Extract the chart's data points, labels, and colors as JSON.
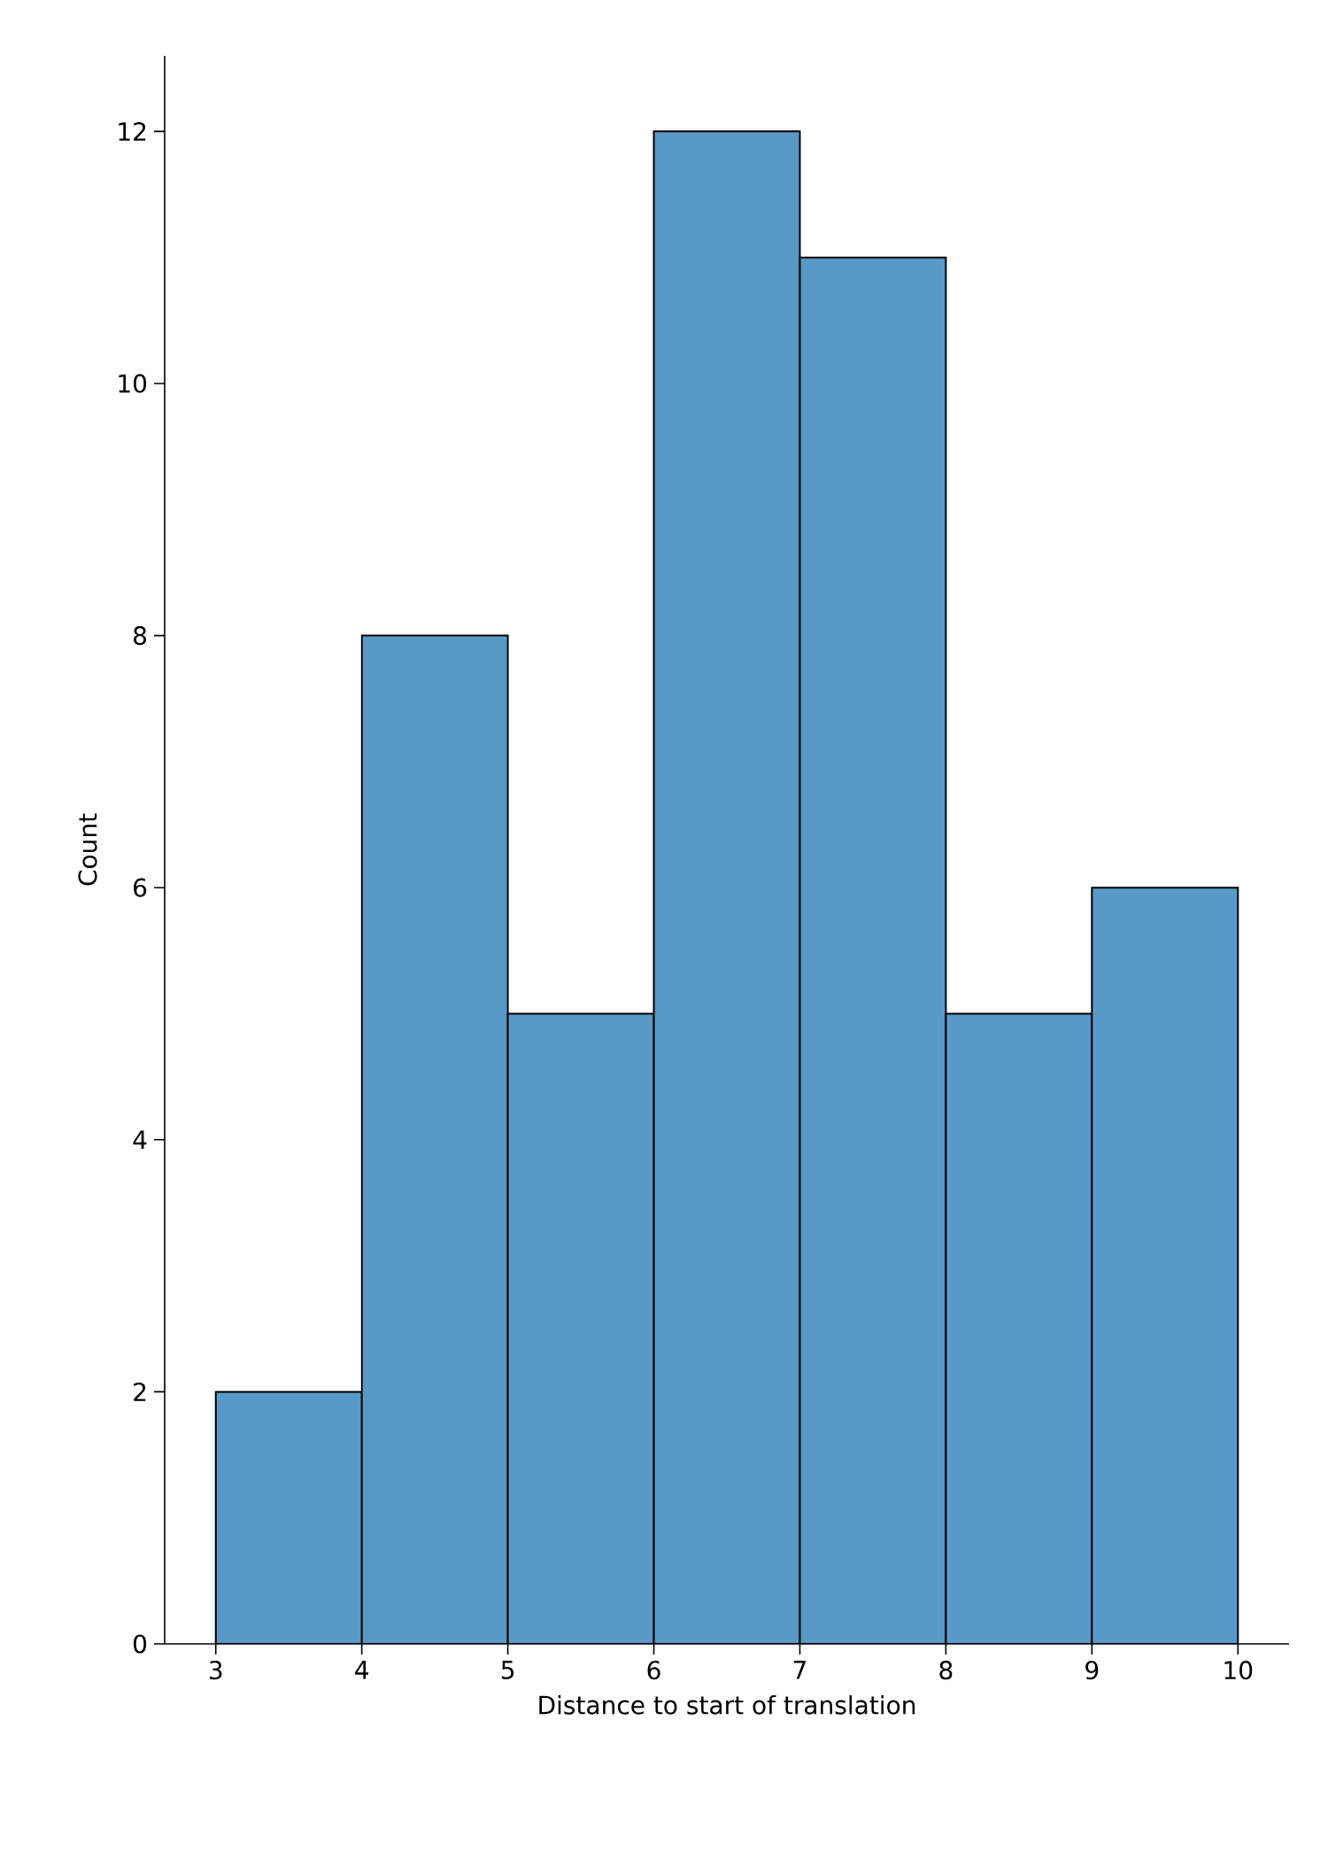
{
  "chart_data": {
    "type": "histogram",
    "xlabel": "Distance to start of translation",
    "ylabel": "Count",
    "bins": [
      3,
      4,
      5,
      6,
      7,
      8,
      9,
      10
    ],
    "values": [
      2,
      8,
      5,
      12,
      11,
      5,
      6
    ],
    "color": "#579ac8",
    "xlim": [
      2.65,
      10.35
    ],
    "ylim": [
      0,
      12.6
    ],
    "xticks": [
      3,
      4,
      5,
      6,
      7,
      8,
      9,
      10
    ],
    "yticks": [
      0,
      2,
      4,
      6,
      8,
      10,
      12
    ]
  }
}
